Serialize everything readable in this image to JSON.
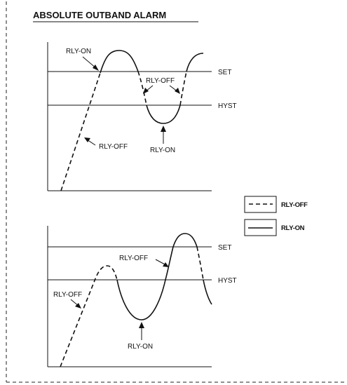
{
  "title": "ABSOLUTE OUTBAND ALARM",
  "top_diagram": {
    "labels": {
      "rly_on_upper": "RLY-ON",
      "rly_off_upper": "RLY-OFF",
      "rly_off_lower": "RLY-OFF",
      "rly_on_lower": "RLY-ON",
      "set": "SET",
      "hyst": "HYST"
    }
  },
  "bottom_diagram": {
    "labels": {
      "rly_off_upper": "RLY-OFF",
      "rly_off_left": "RLY-OFF",
      "rly_on_lower": "RLY-ON",
      "set": "SET",
      "hyst": "HYST"
    }
  },
  "legend": {
    "dashed": "RLY-OFF",
    "solid": "RLY-ON"
  }
}
